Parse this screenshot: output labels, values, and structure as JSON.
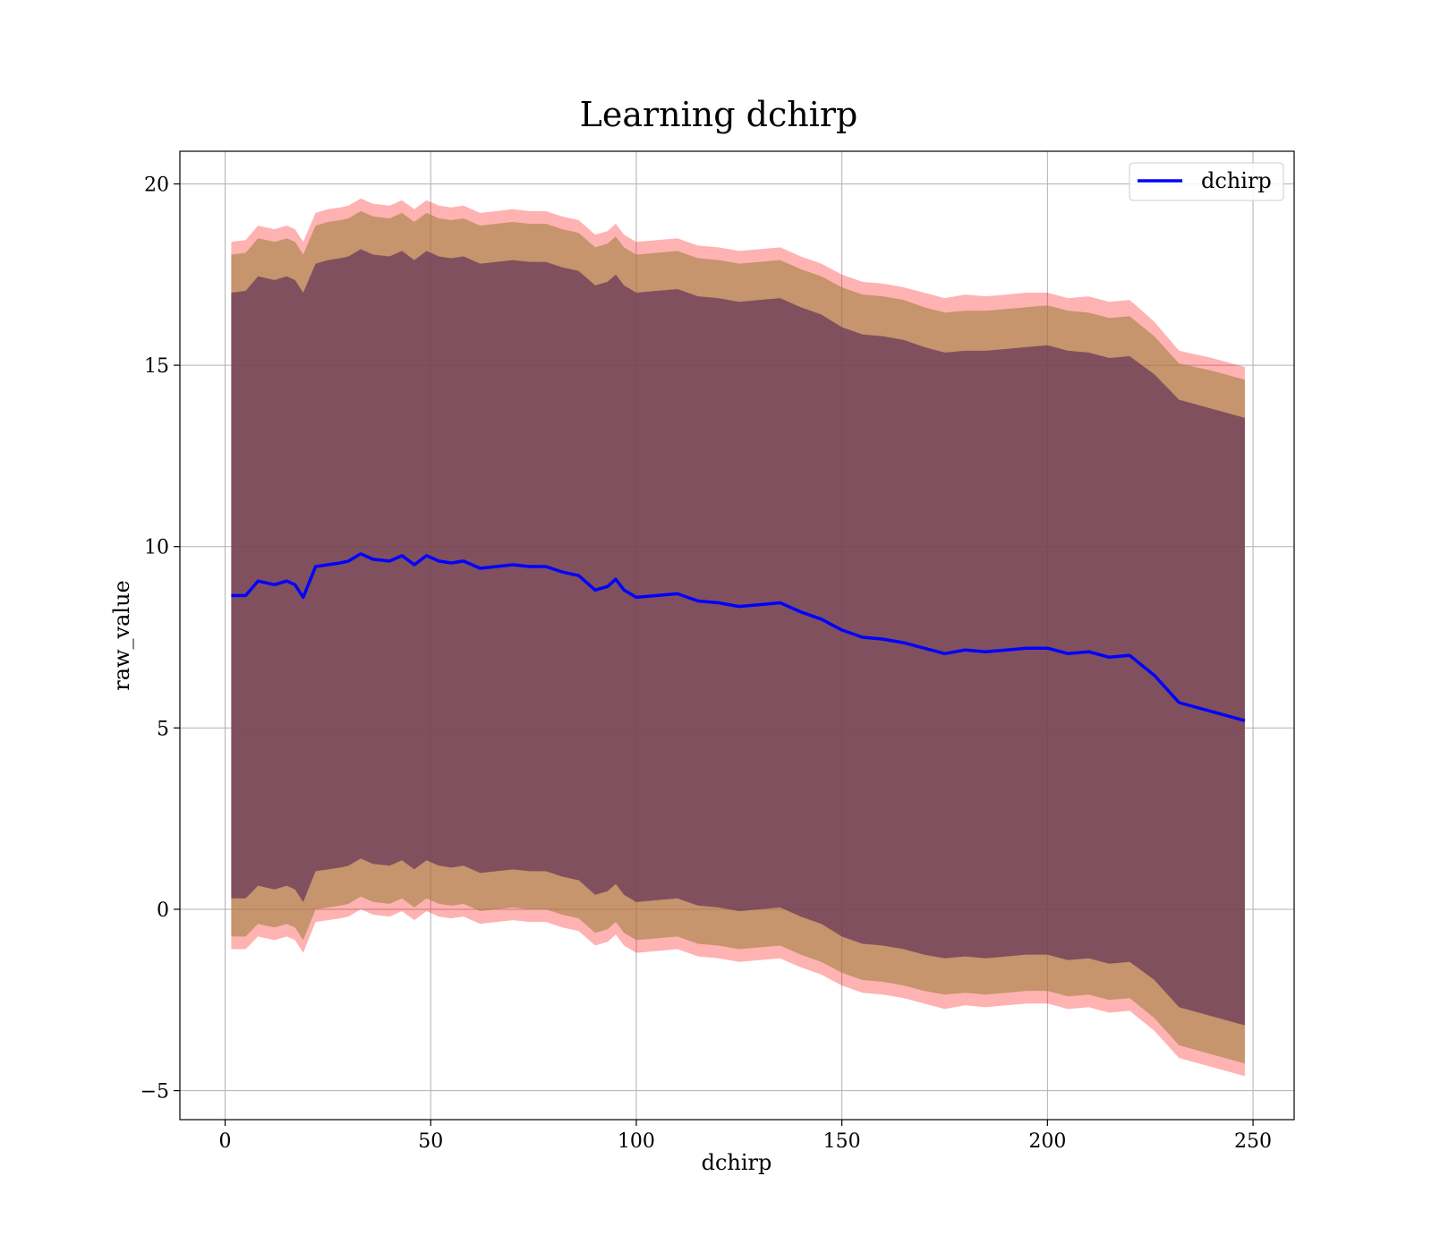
{
  "chart_data": {
    "type": "line",
    "title": "Learning dchirp",
    "xlabel": "dchirp",
    "ylabel": "raw_value",
    "xlim": [
      -11,
      260
    ],
    "ylim": [
      -5.8,
      20.9
    ],
    "xticks": [
      0,
      50,
      100,
      150,
      200,
      250
    ],
    "yticks": [
      -5,
      0,
      5,
      10,
      15,
      20
    ],
    "xtick_labels": [
      "0",
      "50",
      "100",
      "150",
      "200",
      "250"
    ],
    "ytick_labels": [
      "−5",
      "0",
      "5",
      "10",
      "15",
      "20"
    ],
    "grid": true,
    "legend": {
      "position": "top-right",
      "entries": [
        "dchirp"
      ]
    },
    "colors": {
      "line": "#0000ff",
      "outer_band": "#ff0000",
      "middle_band": "#a08040",
      "inner_band": "#6a3a5a",
      "grid": "#b0b0b0"
    },
    "x": [
      1.5,
      5,
      8,
      12,
      15,
      17,
      19,
      22,
      25,
      28,
      30,
      33,
      36,
      40,
      43,
      46,
      49,
      52,
      55,
      58,
      62,
      66,
      70,
      74,
      78,
      82,
      86,
      90,
      93,
      95,
      97,
      100,
      105,
      110,
      115,
      120,
      125,
      130,
      135,
      140,
      145,
      150,
      155,
      160,
      165,
      170,
      175,
      180,
      185,
      190,
      195,
      200,
      205,
      210,
      215,
      220,
      226,
      232,
      240,
      248
    ],
    "series": [
      {
        "name": "dchirp",
        "values": [
          8.65,
          8.65,
          9.05,
          8.95,
          9.05,
          8.95,
          8.6,
          9.45,
          9.5,
          9.55,
          9.6,
          9.8,
          9.65,
          9.6,
          9.75,
          9.5,
          9.75,
          9.6,
          9.55,
          9.6,
          9.4,
          9.45,
          9.5,
          9.45,
          9.45,
          9.3,
          9.2,
          8.8,
          8.9,
          9.1,
          8.8,
          8.6,
          8.65,
          8.7,
          8.5,
          8.45,
          8.35,
          8.4,
          8.45,
          8.2,
          8.0,
          7.7,
          7.5,
          7.45,
          7.35,
          7.2,
          7.05,
          7.15,
          7.1,
          7.15,
          7.2,
          7.2,
          7.05,
          7.1,
          6.95,
          7.0,
          6.45,
          5.7,
          5.45,
          5.2
        ]
      }
    ],
    "bands": [
      {
        "level": "outer",
        "upper": [
          18.4,
          18.45,
          18.85,
          18.75,
          18.85,
          18.75,
          18.4,
          19.2,
          19.3,
          19.35,
          19.4,
          19.6,
          19.45,
          19.4,
          19.55,
          19.3,
          19.55,
          19.4,
          19.35,
          19.4,
          19.2,
          19.25,
          19.3,
          19.25,
          19.25,
          19.1,
          19.0,
          18.6,
          18.7,
          18.9,
          18.6,
          18.4,
          18.45,
          18.5,
          18.3,
          18.25,
          18.15,
          18.2,
          18.25,
          18.0,
          17.8,
          17.5,
          17.3,
          17.25,
          17.15,
          17.0,
          16.85,
          16.95,
          16.9,
          16.95,
          17.0,
          17.0,
          16.85,
          16.9,
          16.75,
          16.8,
          16.2,
          15.4,
          15.2,
          14.95
        ],
        "lower": [
          -1.1,
          -1.1,
          -0.75,
          -0.85,
          -0.75,
          -0.85,
          -1.2,
          -0.35,
          -0.3,
          -0.25,
          -0.2,
          0.0,
          -0.15,
          -0.2,
          -0.05,
          -0.3,
          -0.05,
          -0.2,
          -0.25,
          -0.2,
          -0.4,
          -0.35,
          -0.3,
          -0.35,
          -0.35,
          -0.5,
          -0.6,
          -1.0,
          -0.9,
          -0.7,
          -1.0,
          -1.2,
          -1.15,
          -1.1,
          -1.3,
          -1.35,
          -1.45,
          -1.4,
          -1.35,
          -1.6,
          -1.8,
          -2.1,
          -2.3,
          -2.35,
          -2.45,
          -2.6,
          -2.75,
          -2.65,
          -2.7,
          -2.65,
          -2.6,
          -2.6,
          -2.75,
          -2.7,
          -2.85,
          -2.8,
          -3.35,
          -4.1,
          -4.35,
          -4.6
        ]
      },
      {
        "level": "middle",
        "upper": [
          18.05,
          18.1,
          18.5,
          18.4,
          18.5,
          18.4,
          18.05,
          18.85,
          18.95,
          19.0,
          19.05,
          19.25,
          19.1,
          19.05,
          19.2,
          18.95,
          19.2,
          19.05,
          19.0,
          19.05,
          18.85,
          18.9,
          18.95,
          18.9,
          18.9,
          18.75,
          18.65,
          18.25,
          18.35,
          18.55,
          18.25,
          18.05,
          18.1,
          18.15,
          17.95,
          17.9,
          17.8,
          17.85,
          17.9,
          17.65,
          17.45,
          17.15,
          16.95,
          16.9,
          16.8,
          16.6,
          16.45,
          16.5,
          16.5,
          16.55,
          16.6,
          16.65,
          16.5,
          16.45,
          16.3,
          16.35,
          15.8,
          15.05,
          14.85,
          14.6
        ],
        "lower": [
          -0.75,
          -0.75,
          -0.4,
          -0.5,
          -0.4,
          -0.5,
          -0.85,
          0.0,
          0.05,
          0.1,
          0.15,
          0.35,
          0.2,
          0.15,
          0.3,
          0.05,
          0.3,
          0.15,
          0.1,
          0.15,
          -0.05,
          0.0,
          0.05,
          0.0,
          0.0,
          -0.15,
          -0.25,
          -0.65,
          -0.55,
          -0.35,
          -0.65,
          -0.85,
          -0.8,
          -0.75,
          -0.95,
          -1.0,
          -1.1,
          -1.05,
          -1.0,
          -1.25,
          -1.45,
          -1.75,
          -1.95,
          -2.0,
          -2.1,
          -2.25,
          -2.35,
          -2.3,
          -2.35,
          -2.3,
          -2.25,
          -2.25,
          -2.4,
          -2.35,
          -2.5,
          -2.45,
          -3.0,
          -3.75,
          -4.0,
          -4.25
        ]
      },
      {
        "level": "inner",
        "upper": [
          17.0,
          17.05,
          17.45,
          17.35,
          17.45,
          17.35,
          17.0,
          17.8,
          17.9,
          17.95,
          18.0,
          18.2,
          18.05,
          18.0,
          18.15,
          17.9,
          18.15,
          18.0,
          17.95,
          18.0,
          17.8,
          17.85,
          17.9,
          17.85,
          17.85,
          17.7,
          17.6,
          17.2,
          17.3,
          17.5,
          17.2,
          17.0,
          17.05,
          17.1,
          16.9,
          16.85,
          16.75,
          16.8,
          16.85,
          16.6,
          16.4,
          16.05,
          15.85,
          15.8,
          15.7,
          15.5,
          15.35,
          15.4,
          15.4,
          15.45,
          15.5,
          15.55,
          15.4,
          15.35,
          15.2,
          15.25,
          14.75,
          14.05,
          13.8,
          13.55
        ],
        "lower": [
          0.3,
          0.3,
          0.65,
          0.55,
          0.65,
          0.55,
          0.2,
          1.05,
          1.1,
          1.15,
          1.2,
          1.4,
          1.25,
          1.2,
          1.35,
          1.1,
          1.35,
          1.2,
          1.15,
          1.2,
          1.0,
          1.05,
          1.1,
          1.05,
          1.05,
          0.9,
          0.8,
          0.4,
          0.5,
          0.7,
          0.4,
          0.2,
          0.25,
          0.3,
          0.1,
          0.05,
          -0.05,
          0.0,
          0.05,
          -0.2,
          -0.4,
          -0.75,
          -0.95,
          -1.0,
          -1.1,
          -1.25,
          -1.35,
          -1.3,
          -1.35,
          -1.3,
          -1.25,
          -1.25,
          -1.4,
          -1.35,
          -1.5,
          -1.45,
          -1.95,
          -2.7,
          -2.95,
          -3.2
        ]
      }
    ]
  }
}
